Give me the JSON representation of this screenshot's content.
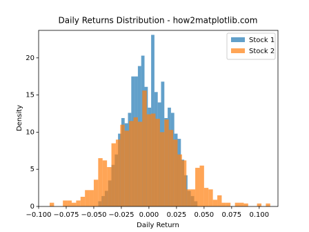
{
  "chart_data": {
    "type": "histogram",
    "title": "Daily Returns Distribution - how2matplotlib.com",
    "x_label": "Daily Return",
    "y_label": "Density",
    "xlim": [
      -0.1,
      0.117
    ],
    "ylim": [
      0,
      23.7
    ],
    "xticks": [
      {
        "value": -0.1,
        "label": "−0.100"
      },
      {
        "value": -0.075,
        "label": "−0.075"
      },
      {
        "value": -0.05,
        "label": "−0.050"
      },
      {
        "value": -0.025,
        "label": "−0.025"
      },
      {
        "value": 0,
        "label": "0.000"
      },
      {
        "value": 0.025,
        "label": "0.025"
      },
      {
        "value": 0.05,
        "label": "0.050"
      },
      {
        "value": 0.075,
        "label": "0.075"
      },
      {
        "value": 0.1,
        "label": "0.100"
      }
    ],
    "yticks": [
      0,
      5,
      10,
      15,
      20
    ],
    "legend": "upper right",
    "series": [
      {
        "name": "Stock 1",
        "color": "#1f77b4",
        "bins": [
          -0.046,
          -0.043,
          -0.04,
          -0.037,
          -0.034,
          -0.031,
          -0.028,
          -0.025,
          -0.022,
          -0.019,
          -0.016,
          -0.013,
          -0.01,
          -0.007,
          -0.004,
          -0.001,
          0.002,
          0.005,
          0.008,
          0.011,
          0.014,
          0.017,
          0.02,
          0.023,
          0.026,
          0.029,
          0.032,
          0.035,
          0.038,
          0.041,
          0.044
        ],
        "values": [
          0.7,
          1.4,
          2.1,
          3.5,
          5.6,
          7.0,
          9.8,
          11.9,
          11.2,
          12.6,
          17.5,
          17.5,
          18.9,
          20.3,
          16.1,
          13.3,
          23.1,
          15.4,
          14.0,
          16.8,
          11.9,
          13.3,
          12.6,
          9.8,
          9.1,
          6.3,
          4.2,
          2.1,
          1.4,
          0.7
        ]
      },
      {
        "name": "Stock 2",
        "color": "#ff7f0e",
        "bins": [
          -0.09,
          -0.086,
          -0.082,
          -0.078,
          -0.074,
          -0.07,
          -0.066,
          -0.062,
          -0.058,
          -0.054,
          -0.05,
          -0.046,
          -0.042,
          -0.038,
          -0.034,
          -0.03,
          -0.026,
          -0.022,
          -0.018,
          -0.014,
          -0.01,
          -0.006,
          -0.002,
          0.002,
          0.006,
          0.01,
          0.014,
          0.018,
          0.022,
          0.026,
          0.03,
          0.034,
          0.038,
          0.042,
          0.046,
          0.05,
          0.054,
          0.058,
          0.062,
          0.066,
          0.07,
          0.074,
          0.078,
          0.082,
          0.086,
          0.09,
          0.094,
          0.098,
          0.102,
          0.106,
          0.11
        ],
        "values": [
          0.5,
          0,
          0,
          0.8,
          0.8,
          0.5,
          0.8,
          1.3,
          2.2,
          2.2,
          3.6,
          6.5,
          6.2,
          5.3,
          8.5,
          9.0,
          11.0,
          10.2,
          11.5,
          12.0,
          11.4,
          15.6,
          12.4,
          12.5,
          11.8,
          10.0,
          11.7,
          10.3,
          9.0,
          7.0,
          6.2,
          2.3,
          2.3,
          5.2,
          5.5,
          2.5,
          2.3,
          0.9,
          1.5,
          0.5,
          0.5,
          0,
          0.5,
          0.5,
          0.4,
          0,
          0,
          0.4,
          0,
          0.4
        ]
      }
    ]
  }
}
